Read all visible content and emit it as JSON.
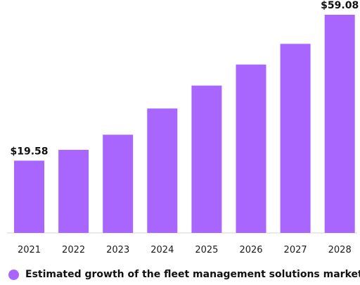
{
  "chart_data": {
    "type": "bar",
    "title": "",
    "xlabel": "",
    "ylabel": "",
    "categories": [
      "2021",
      "2022",
      "2023",
      "2024",
      "2025",
      "2026",
      "2027",
      "2028"
    ],
    "series": [
      {
        "name": "Estimated growth of the fleet management solutions market",
        "values": [
          19.58,
          22.5,
          26.6,
          33.7,
          39.9,
          45.6,
          51.2,
          59.08
        ],
        "color": "#a966ff"
      }
    ],
    "data_labels": [
      "$19.58",
      "",
      "",
      "",
      "",
      "",
      "",
      "$59.08"
    ],
    "ylim": [
      0,
      60
    ],
    "grid": false,
    "legend_position": "bottom-left"
  }
}
